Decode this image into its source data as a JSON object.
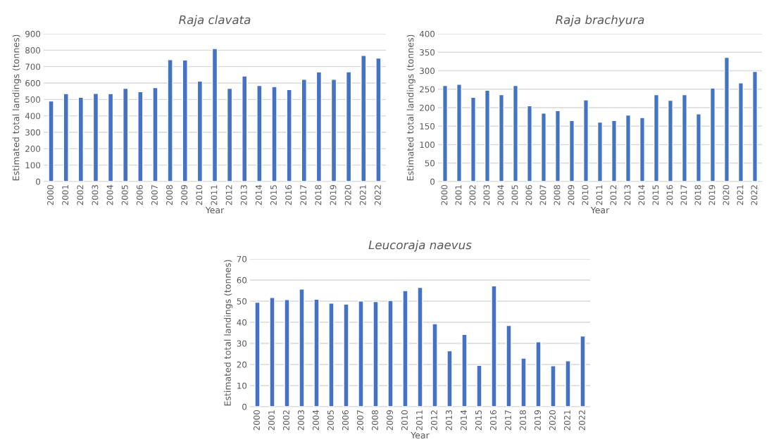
{
  "chart_data": [
    {
      "type": "bar",
      "title": "Raja clavata",
      "xlabel": "Year",
      "ylabel": "Estimated total landings (tonnes)",
      "categories": [
        "2000",
        "2001",
        "2002",
        "2003",
        "2004",
        "2005",
        "2006",
        "2007",
        "2008",
        "2009",
        "2010",
        "2011",
        "2012",
        "2013",
        "2014",
        "2015",
        "2016",
        "2017",
        "2018",
        "2019",
        "2020",
        "2021",
        "2022"
      ],
      "series": [
        {
          "color": "#4472c4",
          "values": [
            490,
            535,
            513,
            537,
            535,
            568,
            547,
            572,
            742,
            740,
            612,
            810,
            568,
            643,
            585,
            578,
            560,
            622,
            667,
            622,
            668,
            768,
            752
          ]
        }
      ],
      "ylim": [
        0,
        900
      ],
      "yticks": [
        0,
        100,
        200,
        300,
        400,
        500,
        600,
        700,
        800,
        900
      ],
      "grid": "y"
    },
    {
      "type": "bar",
      "title": "Raja brachyura",
      "xlabel": "Year",
      "ylabel": "Estimated total landings (tonnes)",
      "categories": [
        "2000",
        "2001",
        "2002",
        "2003",
        "2004",
        "2005",
        "2006",
        "2007",
        "2008",
        "2009",
        "2010",
        "2011",
        "2012",
        "2013",
        "2014",
        "2015",
        "2016",
        "2017",
        "2018",
        "2019",
        "2020",
        "2021",
        "2022"
      ],
      "series": [
        {
          "color": "#4472c4",
          "values": [
            260,
            263,
            228,
            247,
            235,
            260,
            205,
            185,
            192,
            165,
            221,
            161,
            165,
            180,
            173,
            235,
            220,
            235,
            183,
            253,
            336,
            267,
            298
          ]
        }
      ],
      "ylim": [
        0,
        400
      ],
      "yticks": [
        0,
        50,
        100,
        150,
        200,
        250,
        300,
        350,
        400
      ],
      "grid": "y"
    },
    {
      "type": "bar",
      "title": "Leucoraja naevus",
      "xlabel": "Year",
      "ylabel": "Estimated total landings (tonnes)",
      "categories": [
        "2000",
        "2001",
        "2002",
        "2003",
        "2004",
        "2005",
        "2006",
        "2007",
        "2008",
        "2009",
        "2010",
        "2011",
        "2012",
        "2013",
        "2014",
        "2015",
        "2016",
        "2017",
        "2018",
        "2019",
        "2020",
        "2021",
        "2022"
      ],
      "series": [
        {
          "color": "#4472c4",
          "values": [
            49.5,
            51.7,
            50.7,
            55.7,
            50.9,
            49.1,
            48.6,
            50.1,
            49.8,
            50.3,
            55,
            56.5,
            39.3,
            26.5,
            34.2,
            19.6,
            57.2,
            38.5,
            23,
            30.7,
            19.4,
            21.7,
            33.5
          ]
        }
      ],
      "ylim": [
        0,
        70
      ],
      "yticks": [
        0,
        10,
        20,
        30,
        40,
        50,
        60,
        70
      ],
      "grid": "y"
    }
  ]
}
